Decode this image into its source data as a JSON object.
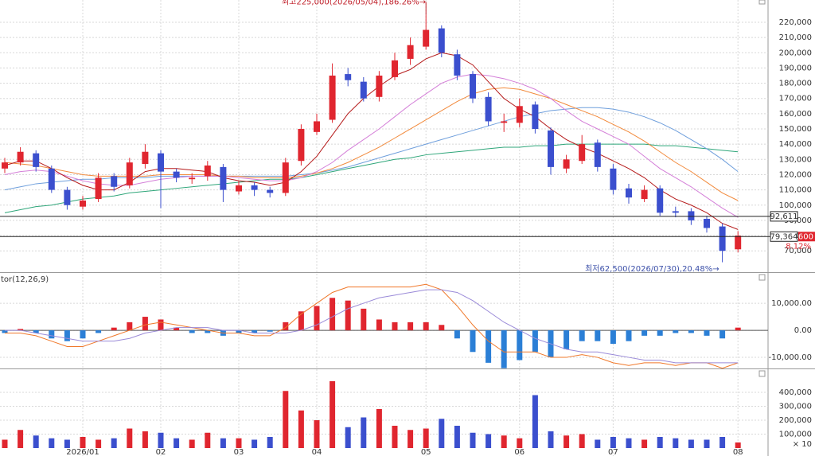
{
  "chart_data": [
    {
      "type": "candlestick",
      "categories": [
        null,
        null,
        null,
        null,
        null,
        "2026/01",
        null,
        null,
        null,
        null,
        "02",
        null,
        null,
        null,
        null,
        "03",
        null,
        null,
        null,
        null,
        "04",
        null,
        null,
        null,
        null,
        null,
        null,
        "05",
        null,
        null,
        null,
        null,
        null,
        "06",
        null,
        null,
        null,
        null,
        null,
        "07",
        null,
        null,
        null,
        null,
        null,
        null,
        null,
        "08"
      ],
      "open": [
        124000,
        128000,
        134000,
        124000,
        110000,
        99000,
        104000,
        119000,
        113000,
        127000,
        134000,
        122000,
        117000,
        119000,
        125000,
        109000,
        113000,
        110000,
        108000,
        129000,
        148000,
        156000,
        186000,
        181000,
        171000,
        184000,
        196000,
        204000,
        216000,
        199000,
        186000,
        171000,
        154000,
        154000,
        166000,
        149000,
        124000,
        129000,
        141000,
        124000,
        111000,
        104000,
        111000,
        96000,
        96000,
        91000,
        86000,
        71000
      ],
      "high": [
        131000,
        138000,
        136000,
        126000,
        112000,
        106000,
        121000,
        121000,
        131000,
        140000,
        136000,
        124000,
        121000,
        129000,
        127000,
        116000,
        115000,
        112000,
        131000,
        153000,
        160000,
        193000,
        190000,
        184000,
        188000,
        200000,
        210000,
        225000,
        218000,
        202000,
        188000,
        174000,
        160000,
        170000,
        168000,
        151000,
        133000,
        146000,
        143000,
        127000,
        114000,
        113000,
        113000,
        99000,
        98000,
        93000,
        88000,
        83000
      ],
      "low": [
        121000,
        126000,
        122000,
        108000,
        97000,
        97000,
        102000,
        109000,
        111000,
        124000,
        98000,
        115000,
        114000,
        116000,
        102000,
        107000,
        106000,
        105000,
        106000,
        126000,
        146000,
        154000,
        178000,
        168000,
        168000,
        182000,
        192000,
        202000,
        197000,
        182000,
        167000,
        152000,
        148000,
        151000,
        147000,
        120000,
        121000,
        127000,
        122000,
        107000,
        101000,
        102000,
        93000,
        92000,
        87000,
        82000,
        62500,
        69000
      ],
      "close": [
        128000,
        135000,
        125000,
        110000,
        100000,
        103000,
        118000,
        112000,
        128000,
        135000,
        122000,
        118000,
        118000,
        126000,
        110000,
        113000,
        110000,
        108000,
        128000,
        150000,
        155000,
        185000,
        182000,
        170000,
        185000,
        195000,
        205000,
        215000,
        200000,
        185000,
        170000,
        155000,
        155000,
        165000,
        150000,
        125000,
        130000,
        140000,
        125000,
        110000,
        105000,
        110000,
        95000,
        95000,
        90000,
        85000,
        70000,
        80000
      ],
      "up_color": "#e0262f",
      "down_color": "#3b4fce",
      "series": [
        {
          "color": "#2fa67a",
          "values": [
            95000,
            97000,
            99000,
            100000,
            102000,
            104000,
            105000,
            106000,
            108000,
            109000,
            110000,
            111000,
            112000,
            113000,
            114000,
            115000,
            116000,
            117000,
            117000,
            118000,
            120000,
            122000,
            124000,
            126000,
            128000,
            130000,
            131000,
            133000,
            134000,
            135000,
            136000,
            137000,
            138000,
            138000,
            139000,
            139000,
            140000,
            140000,
            140000,
            140000,
            140000,
            140000,
            139000,
            139000,
            138000,
            137000,
            136000,
            135000
          ]
        },
        {
          "color": "#6f9fdc",
          "values": [
            110000,
            112000,
            114000,
            115000,
            116000,
            117000,
            117000,
            118000,
            118000,
            118000,
            119000,
            119000,
            119000,
            119000,
            119000,
            119000,
            119000,
            119000,
            119000,
            120000,
            121000,
            123000,
            125000,
            128000,
            131000,
            134000,
            137000,
            140000,
            143000,
            146000,
            149000,
            152000,
            155000,
            158000,
            160000,
            162000,
            163000,
            164000,
            164000,
            163000,
            161000,
            158000,
            154000,
            149000,
            143000,
            137000,
            130000,
            122000
          ]
        },
        {
          "color": "#f28a3c",
          "values": [
            128000,
            127000,
            126000,
            124000,
            122000,
            120000,
            119000,
            119000,
            119000,
            119000,
            120000,
            120000,
            120000,
            120000,
            119000,
            119000,
            118000,
            118000,
            118000,
            119000,
            121000,
            124000,
            128000,
            133000,
            138000,
            144000,
            150000,
            156000,
            162000,
            168000,
            173000,
            176000,
            177000,
            176000,
            173000,
            170000,
            166000,
            162000,
            158000,
            153000,
            148000,
            142000,
            135000,
            128000,
            122000,
            115000,
            108000,
            103000
          ]
        },
        {
          "color": "#d47fd8",
          "values": [
            120000,
            122000,
            123000,
            122000,
            119000,
            116000,
            114000,
            113000,
            113000,
            115000,
            117000,
            118000,
            119000,
            119000,
            119000,
            118000,
            117000,
            116000,
            116000,
            118000,
            122000,
            128000,
            136000,
            143000,
            150000,
            158000,
            166000,
            173000,
            180000,
            184000,
            186000,
            185000,
            183000,
            180000,
            176000,
            170000,
            162000,
            155000,
            150000,
            145000,
            140000,
            132000,
            124000,
            118000,
            112000,
            105000,
            98000,
            92000
          ]
        },
        {
          "color": "#b51a1a",
          "values": [
            126000,
            129000,
            129000,
            124000,
            118000,
            113000,
            110000,
            110000,
            115000,
            122000,
            124000,
            124000,
            123000,
            122000,
            118000,
            116000,
            115000,
            113000,
            115000,
            122000,
            132000,
            146000,
            160000,
            170000,
            178000,
            185000,
            189000,
            196000,
            200000,
            198000,
            192000,
            181000,
            170000,
            163000,
            158000,
            150000,
            143000,
            138000,
            134000,
            129000,
            124000,
            118000,
            110000,
            104000,
            100000,
            95000,
            88000,
            84000
          ]
        }
      ],
      "ylim": [
        56000,
        232000
      ],
      "yticks": [
        {
          "value": 70000,
          "label": "70,000"
        },
        {
          "value": 80000,
          "label": "80,000"
        },
        {
          "value": 90000,
          "label": "90,000"
        },
        {
          "value": 100000,
          "label": "100,000"
        },
        {
          "value": 110000,
          "label": "110,000"
        },
        {
          "value": 120000,
          "label": "120,000"
        },
        {
          "value": 130000,
          "label": "130,000"
        },
        {
          "value": 140000,
          "label": "140,000"
        },
        {
          "value": 150000,
          "label": "150,000"
        },
        {
          "value": 160000,
          "label": "160,000"
        },
        {
          "value": 170000,
          "label": "170,000"
        },
        {
          "value": 180000,
          "label": "180,000"
        },
        {
          "value": 190000,
          "label": "190,000"
        },
        {
          "value": 200000,
          "label": "200,000"
        },
        {
          "value": 210000,
          "label": "210,000"
        },
        {
          "value": 220000,
          "label": "220,000"
        }
      ],
      "grid": true,
      "reference_lines": [
        {
          "value": 92611,
          "label": "92,611"
        },
        {
          "value": 79364,
          "label": "79,364"
        }
      ],
      "current_price_label": ",600",
      "change_label": "8.12%",
      "annotations": [
        {
          "text": "최고225,000(2026/05/04),186.26%→",
          "color": "#c0202a"
        },
        {
          "text": "최저62,500(2026/07/30),20.48%→",
          "color": "#3b4fa8"
        }
      ]
    },
    {
      "type": "macd",
      "title": "tor(12,26,9)",
      "values": [
        -1000,
        500,
        -1000,
        -3000,
        -4000,
        -3000,
        -1000,
        1000,
        3000,
        5000,
        4000,
        1000,
        -1000,
        -1000,
        -2000,
        -1000,
        -1000,
        -500,
        3000,
        7000,
        9000,
        12000,
        11000,
        8000,
        4000,
        3000,
        3000,
        3000,
        2000,
        -3000,
        -8000,
        -12000,
        -14000,
        -11000,
        -8000,
        -10000,
        -7000,
        -4000,
        -4000,
        -5000,
        -4000,
        -2000,
        -2000,
        -1000,
        -1000,
        -2000,
        -3000,
        1000
      ],
      "up_color": "#e0262f",
      "down_color": "#2b7fd6",
      "series": [
        {
          "color": "#f0782a",
          "values": [
            -1000,
            -1000,
            -2000,
            -4000,
            -6000,
            -6000,
            -4000,
            -2000,
            0,
            2000,
            3000,
            2000,
            1000,
            0,
            -1000,
            -1000,
            -2000,
            -2000,
            1000,
            6000,
            10000,
            14000,
            16000,
            16000,
            16000,
            16000,
            16000,
            17000,
            15000,
            9000,
            2000,
            -4000,
            -8000,
            -8000,
            -8000,
            -10000,
            -10000,
            -9000,
            -10000,
            -12000,
            -13000,
            -12000,
            -12000,
            -13000,
            -12000,
            -12000,
            -14000,
            -12000
          ]
        },
        {
          "color": "#9a8ad8",
          "values": [
            0,
            0,
            -1000,
            -2000,
            -3000,
            -4000,
            -4000,
            -4000,
            -3000,
            -1000,
            0,
            1000,
            1000,
            1000,
            0,
            0,
            -1000,
            -1000,
            -1000,
            0,
            2000,
            5000,
            8000,
            10000,
            12000,
            13000,
            14000,
            15000,
            15000,
            14000,
            11000,
            7000,
            3000,
            0,
            -3000,
            -5000,
            -7000,
            -8000,
            -8000,
            -9000,
            -10000,
            -11000,
            -11000,
            -12000,
            -12000,
            -12000,
            -12000,
            -12000
          ]
        }
      ],
      "ylim": [
        -14100,
        21200
      ],
      "yticks": [
        {
          "value": 10000,
          "label": "10,000.00"
        },
        {
          "value": 0,
          "label": "0.00"
        },
        {
          "value": -10000,
          "label": "-10,000.00"
        }
      ]
    },
    {
      "type": "volume",
      "values": [
        60000,
        130000,
        90000,
        70000,
        60000,
        80000,
        60000,
        70000,
        140000,
        120000,
        110000,
        70000,
        60000,
        110000,
        70000,
        70000,
        60000,
        80000,
        410000,
        270000,
        200000,
        480000,
        150000,
        220000,
        280000,
        160000,
        130000,
        140000,
        210000,
        160000,
        110000,
        100000,
        90000,
        70000,
        380000,
        120000,
        90000,
        100000,
        60000,
        80000,
        70000,
        60000,
        80000,
        70000,
        60000,
        60000,
        80000,
        40000
      ],
      "ylim": [
        0,
        543000
      ],
      "yticks": [
        {
          "value": 100000,
          "label": "100,000"
        },
        {
          "value": 200000,
          "label": "200,000"
        },
        {
          "value": 300000,
          "label": "300,000"
        },
        {
          "value": 400000,
          "label": "400,000"
        }
      ],
      "unit_label": "× 10"
    }
  ]
}
